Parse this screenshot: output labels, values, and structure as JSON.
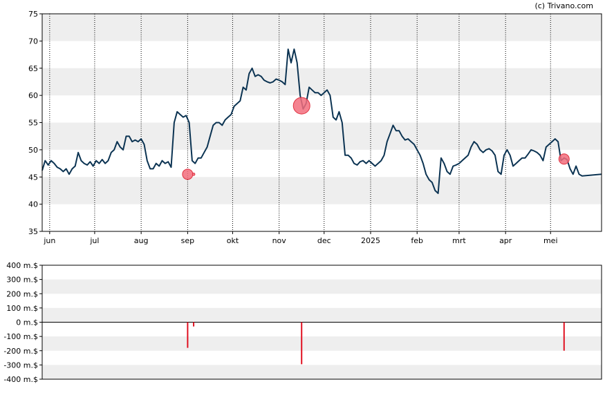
{
  "credit": "(c) Trivano.com",
  "colors": {
    "line": "#0b3352",
    "band": "#eeeeee",
    "bubble_fill": "#f26d7d",
    "bubble_stroke": "#e0303f",
    "bar": "#e01020"
  },
  "chart_data": [
    {
      "type": "line",
      "title": "",
      "xlabel": "",
      "ylabel": "",
      "ylim": [
        35,
        75
      ],
      "yticks": [
        35,
        40,
        45,
        50,
        55,
        60,
        65,
        70,
        75
      ],
      "grid": "alternating horizontal bands with dotted vertical month lines",
      "months": [
        {
          "label": "jun",
          "day": 6
        },
        {
          "label": "jul",
          "day": 36
        },
        {
          "label": "aug",
          "day": 67
        },
        {
          "label": "sep",
          "day": 98
        },
        {
          "label": "okt",
          "day": 128
        },
        {
          "label": "nov",
          "day": 159
        },
        {
          "label": "dec",
          "day": 189
        },
        {
          "label": "2025",
          "day": 220
        },
        {
          "label": "feb",
          "day": 251
        },
        {
          "label": "mrt",
          "day": 279
        },
        {
          "label": "apr",
          "day": 310
        },
        {
          "label": "mei",
          "day": 340
        }
      ],
      "x_range": [
        1,
        374
      ],
      "series": [
        {
          "points": [
            [
              1,
              46.2
            ],
            [
              3,
              48
            ],
            [
              5,
              47.2
            ],
            [
              7,
              48
            ],
            [
              9,
              47.5
            ],
            [
              11,
              46.8
            ],
            [
              13,
              46.5
            ],
            [
              15,
              46
            ],
            [
              17,
              46.5
            ],
            [
              19,
              45.5
            ],
            [
              21,
              46.5
            ],
            [
              23,
              47
            ],
            [
              25,
              49.5
            ],
            [
              27,
              48
            ],
            [
              29,
              47.5
            ],
            [
              31,
              47.2
            ],
            [
              33,
              47.8
            ],
            [
              35,
              47
            ],
            [
              37,
              48
            ],
            [
              39,
              47.5
            ],
            [
              41,
              48.2
            ],
            [
              43,
              47.5
            ],
            [
              45,
              48
            ],
            [
              47,
              49.5
            ],
            [
              49,
              50
            ],
            [
              51,
              51.5
            ],
            [
              53,
              50.5
            ],
            [
              55,
              50
            ],
            [
              57,
              52.5
            ],
            [
              59,
              52.5
            ],
            [
              61,
              51.5
            ],
            [
              63,
              51.8
            ],
            [
              65,
              51.5
            ],
            [
              67,
              52
            ],
            [
              69,
              51
            ],
            [
              71,
              48
            ],
            [
              73,
              46.5
            ],
            [
              75,
              46.5
            ],
            [
              77,
              47.5
            ],
            [
              79,
              47
            ],
            [
              81,
              48
            ],
            [
              83,
              47.5
            ],
            [
              85,
              47.8
            ],
            [
              87,
              46.8
            ],
            [
              89,
              55
            ],
            [
              91,
              57
            ],
            [
              93,
              56.5
            ],
            [
              95,
              56
            ],
            [
              97,
              56.3
            ],
            [
              99,
              55
            ],
            [
              101,
              48
            ],
            [
              103,
              47.5
            ],
            [
              105,
              48.5
            ],
            [
              107,
              48.5
            ],
            [
              109,
              49.5
            ],
            [
              111,
              50.5
            ],
            [
              113,
              52.5
            ],
            [
              115,
              54.5
            ],
            [
              117,
              55
            ],
            [
              119,
              55
            ],
            [
              121,
              54.5
            ],
            [
              123,
              55.5
            ],
            [
              125,
              56
            ],
            [
              127,
              56.5
            ],
            [
              129,
              58
            ],
            [
              131,
              58.5
            ],
            [
              133,
              59
            ],
            [
              135,
              61.5
            ],
            [
              137,
              61
            ],
            [
              139,
              64
            ],
            [
              141,
              65
            ],
            [
              143,
              63.5
            ],
            [
              145,
              63.8
            ],
            [
              147,
              63.5
            ],
            [
              149,
              62.8
            ],
            [
              151,
              62.5
            ],
            [
              153,
              62.3
            ],
            [
              155,
              62.5
            ],
            [
              157,
              63
            ],
            [
              159,
              62.8
            ],
            [
              161,
              62.5
            ],
            [
              163,
              62
            ],
            [
              165,
              68.5
            ],
            [
              167,
              66
            ],
            [
              169,
              68.5
            ],
            [
              171,
              66
            ],
            [
              173,
              60
            ],
            [
              175,
              57.5
            ],
            [
              177,
              58.5
            ],
            [
              179,
              61.5
            ],
            [
              181,
              61
            ],
            [
              183,
              60.5
            ],
            [
              185,
              60.5
            ],
            [
              187,
              60
            ],
            [
              189,
              60.5
            ],
            [
              191,
              61
            ],
            [
              193,
              60
            ],
            [
              195,
              56
            ],
            [
              197,
              55.5
            ],
            [
              199,
              57
            ],
            [
              201,
              55
            ],
            [
              203,
              49
            ],
            [
              205,
              49
            ],
            [
              207,
              48.5
            ],
            [
              209,
              47.5
            ],
            [
              211,
              47.2
            ],
            [
              213,
              47.8
            ],
            [
              215,
              48
            ],
            [
              217,
              47.5
            ],
            [
              219,
              48
            ],
            [
              221,
              47.5
            ],
            [
              223,
              47
            ],
            [
              225,
              47.5
            ],
            [
              227,
              48
            ],
            [
              229,
              49
            ],
            [
              231,
              51.5
            ],
            [
              233,
              53
            ],
            [
              235,
              54.5
            ],
            [
              237,
              53.5
            ],
            [
              239,
              53.5
            ],
            [
              241,
              52.5
            ],
            [
              243,
              51.8
            ],
            [
              245,
              52
            ],
            [
              247,
              51.5
            ],
            [
              249,
              51
            ],
            [
              251,
              50
            ],
            [
              253,
              49
            ],
            [
              255,
              47.5
            ],
            [
              257,
              45.5
            ],
            [
              259,
              44.5
            ],
            [
              261,
              44
            ],
            [
              263,
              42.5
            ],
            [
              265,
              42
            ],
            [
              267,
              48.5
            ],
            [
              269,
              47.5
            ],
            [
              271,
              46
            ],
            [
              273,
              45.5
            ],
            [
              275,
              47
            ],
            [
              277,
              47.2
            ],
            [
              279,
              47.5
            ],
            [
              281,
              48
            ],
            [
              283,
              48.5
            ],
            [
              285,
              49
            ],
            [
              287,
              50.5
            ],
            [
              289,
              51.5
            ],
            [
              291,
              51
            ],
            [
              293,
              50
            ],
            [
              295,
              49.5
            ],
            [
              297,
              50
            ],
            [
              299,
              50.2
            ],
            [
              301,
              49.8
            ],
            [
              303,
              49
            ],
            [
              305,
              46
            ],
            [
              307,
              45.5
            ],
            [
              309,
              49
            ],
            [
              311,
              50
            ],
            [
              313,
              49
            ],
            [
              315,
              47
            ],
            [
              317,
              47.5
            ],
            [
              319,
              48
            ],
            [
              321,
              48.5
            ],
            [
              323,
              48.5
            ],
            [
              325,
              49.2
            ],
            [
              327,
              50
            ],
            [
              329,
              49.8
            ],
            [
              331,
              49.5
            ],
            [
              333,
              49
            ],
            [
              335,
              48
            ],
            [
              337,
              50.5
            ],
            [
              339,
              51
            ],
            [
              341,
              51.5
            ],
            [
              343,
              52
            ],
            [
              345,
              51.5
            ],
            [
              347,
              48
            ],
            [
              349,
              48.5
            ],
            [
              351,
              48.2
            ],
            [
              353,
              46.5
            ],
            [
              355,
              45.5
            ],
            [
              357,
              47
            ],
            [
              359,
              45.5
            ],
            [
              361,
              45.2
            ],
            [
              374,
              45.5
            ]
          ]
        }
      ],
      "markers": [
        {
          "day": 98,
          "y": 45.5,
          "size": "small"
        },
        {
          "day": 102,
          "y": 45.5,
          "size": "tiny"
        },
        {
          "day": 174,
          "y": 58.1,
          "size": "large"
        },
        {
          "day": 349,
          "y": 48.3,
          "size": "small"
        }
      ]
    },
    {
      "type": "bar",
      "title": "",
      "ylabel": "",
      "unit": "m.$",
      "ylim": [
        -400,
        400
      ],
      "yticks": [
        "400 m.$",
        "300 m.$",
        "200 m.$",
        "100 m.$",
        "0 m.$",
        "-100 m.$",
        "-200 m.$",
        "-300 m.$",
        "-400 m.$"
      ],
      "bars": [
        {
          "day": 98,
          "value": -180
        },
        {
          "day": 102,
          "value": -30
        },
        {
          "day": 174,
          "value": -295
        },
        {
          "day": 349,
          "value": -200
        }
      ]
    }
  ]
}
